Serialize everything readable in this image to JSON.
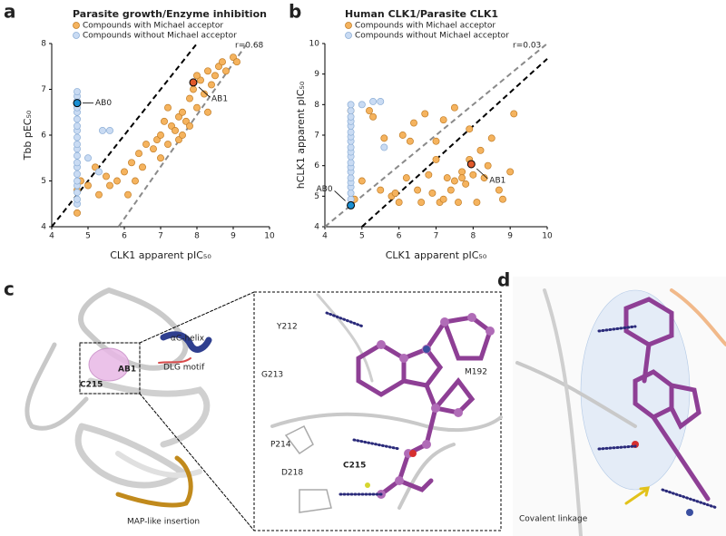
{
  "panel_labels": [
    "a",
    "b",
    "c",
    "d"
  ],
  "chart_data": [
    {
      "type": "scatter",
      "title": "Parasite growth/Enzyme inhibition",
      "xlabel": "CLK1 apparent pIC₅₀",
      "ylabel": "Tbb pEC₅₀",
      "annotation": "r=0.68",
      "xlim": [
        4,
        10
      ],
      "xticks": [
        4,
        5,
        6,
        7,
        8,
        9,
        10
      ],
      "ylim": [
        4,
        8
      ],
      "yticks": [
        4,
        5,
        6,
        7,
        8
      ],
      "legend": "top-left",
      "series": [
        {
          "name": "Compounds with Michael acceptor",
          "color": "#f5b35e",
          "edge": "#c27d26",
          "x": [
            4.7,
            4.7,
            4.8,
            5.0,
            5.2,
            5.3,
            5.5,
            5.8,
            6.0,
            6.1,
            6.2,
            6.4,
            6.5,
            6.6,
            6.8,
            6.9,
            7.0,
            7.0,
            7.1,
            7.2,
            7.3,
            7.4,
            7.5,
            7.5,
            7.6,
            7.7,
            7.8,
            7.8,
            7.9,
            8.0,
            8.1,
            8.2,
            8.3,
            8.4,
            8.5,
            8.6,
            8.7,
            8.8,
            9.0,
            9.1,
            6.3,
            7.2,
            7.6,
            8.0,
            8.3,
            5.6
          ],
          "values": [
            4.3,
            4.8,
            5.0,
            4.9,
            5.3,
            4.7,
            5.1,
            5.0,
            5.2,
            4.7,
            5.4,
            5.6,
            5.3,
            5.8,
            5.7,
            5.9,
            6.0,
            5.5,
            6.3,
            5.8,
            6.2,
            6.1,
            6.4,
            5.9,
            6.5,
            6.3,
            6.8,
            6.2,
            7.0,
            6.6,
            7.2,
            6.9,
            7.4,
            7.1,
            7.3,
            7.5,
            7.6,
            7.4,
            7.7,
            7.6,
            5.0,
            6.6,
            6.0,
            7.3,
            6.5,
            4.9
          ]
        },
        {
          "name": "Compounds without Michael acceptor",
          "color": "#c9dbf3",
          "edge": "#8caed6",
          "x": [
            4.7,
            4.7,
            4.7,
            4.7,
            4.7,
            4.7,
            4.7,
            4.7,
            4.7,
            4.7,
            4.7,
            4.7,
            4.7,
            4.7,
            4.7,
            4.7,
            4.7,
            4.7,
            4.7,
            4.7,
            5.0,
            5.3,
            5.4,
            5.6
          ],
          "values": [
            4.5,
            4.6,
            4.75,
            4.9,
            5.0,
            5.15,
            5.3,
            5.4,
            5.55,
            5.7,
            5.8,
            5.95,
            6.1,
            6.2,
            6.35,
            6.5,
            6.6,
            6.75,
            6.85,
            6.95,
            5.5,
            5.2,
            6.1,
            6.1
          ]
        }
      ],
      "highlights": [
        {
          "label": "AB0",
          "x": 4.7,
          "y": 6.7,
          "color": "#1b8fd2"
        },
        {
          "label": "AB1",
          "x": 7.9,
          "y": 7.15,
          "color": "#e0592b"
        }
      ],
      "reference_lines": [
        {
          "slope": 1,
          "intercept": 0,
          "color": "#000000"
        },
        {
          "slope": 1.13,
          "intercept": -2.6,
          "color": "#8a8a8a"
        }
      ]
    },
    {
      "type": "scatter",
      "title": "Human CLK1/Parasite CLK1",
      "xlabel": "CLK1 apparent pIC₅₀",
      "ylabel": "hCLK1 apparent pIC₅₀",
      "annotation": "r=0.03",
      "xlim": [
        4,
        10
      ],
      "xticks": [
        4,
        5,
        6,
        7,
        8,
        9,
        10
      ],
      "ylim": [
        4,
        10
      ],
      "yticks": [
        4,
        5,
        6,
        7,
        8,
        9,
        10
      ],
      "legend": "top-left",
      "series": [
        {
          "name": "Compounds with Michael acceptor",
          "color": "#f5b35e",
          "edge": "#c27d26",
          "x": [
            4.7,
            4.8,
            5.0,
            5.3,
            5.5,
            5.6,
            5.8,
            6.0,
            6.2,
            6.4,
            6.5,
            6.6,
            6.8,
            6.9,
            7.0,
            7.1,
            7.2,
            7.3,
            7.4,
            7.5,
            7.6,
            7.7,
            7.8,
            7.9,
            8.0,
            8.1,
            8.2,
            8.3,
            8.5,
            8.7,
            9.0,
            9.1,
            6.1,
            6.7,
            7.2,
            7.5,
            7.9,
            8.4,
            5.2,
            5.9,
            7.0,
            7.7,
            8.8,
            6.3
          ],
          "values": [
            7.8,
            4.9,
            5.5,
            7.6,
            5.2,
            6.9,
            5.0,
            4.8,
            5.6,
            7.4,
            5.2,
            4.8,
            5.7,
            5.1,
            6.2,
            4.8,
            7.5,
            5.6,
            5.2,
            7.9,
            4.8,
            5.8,
            5.4,
            6.2,
            5.7,
            4.8,
            6.5,
            5.6,
            6.9,
            5.2,
            5.8,
            7.7,
            7.0,
            7.7,
            4.9,
            5.5,
            7.2,
            6.0,
            7.8,
            5.1,
            6.8,
            5.6,
            4.9,
            6.8
          ]
        },
        {
          "name": "Compounds without Michael acceptor",
          "color": "#c9dbf3",
          "edge": "#8caed6",
          "x": [
            4.7,
            4.7,
            4.7,
            4.7,
            4.7,
            4.7,
            4.7,
            4.7,
            4.7,
            4.7,
            4.7,
            4.7,
            4.7,
            4.7,
            4.7,
            4.7,
            4.7,
            4.7,
            4.7,
            4.7,
            5.0,
            5.3,
            5.5,
            5.6
          ],
          "values": [
            4.7,
            4.9,
            5.1,
            5.3,
            5.45,
            5.6,
            5.8,
            5.95,
            6.1,
            6.3,
            6.45,
            6.6,
            6.8,
            6.95,
            7.1,
            7.3,
            7.45,
            7.6,
            7.8,
            8.0,
            8.0,
            8.1,
            8.1,
            6.6
          ]
        }
      ],
      "highlights": [
        {
          "label": "AB0",
          "x": 4.7,
          "y": 4.7,
          "color": "#1b8fd2"
        },
        {
          "label": "AB1",
          "x": 7.95,
          "y": 6.05,
          "color": "#e0592b"
        }
      ],
      "reference_lines": [
        {
          "slope": 1,
          "intercept": 0,
          "color": "#8a8a8a"
        },
        {
          "slope": 1.1,
          "intercept": -1.5,
          "color": "#000000"
        }
      ]
    }
  ],
  "panel_c": {
    "overview_labels": [
      "αC-helix",
      "DLG motif",
      "AB1",
      "C215",
      "MAP-like insertion"
    ],
    "inset_labels": [
      "Y212",
      "M192",
      "G213",
      "P214",
      "C215",
      "D218"
    ]
  },
  "panel_d": {
    "caption": "Covalent linkage"
  }
}
